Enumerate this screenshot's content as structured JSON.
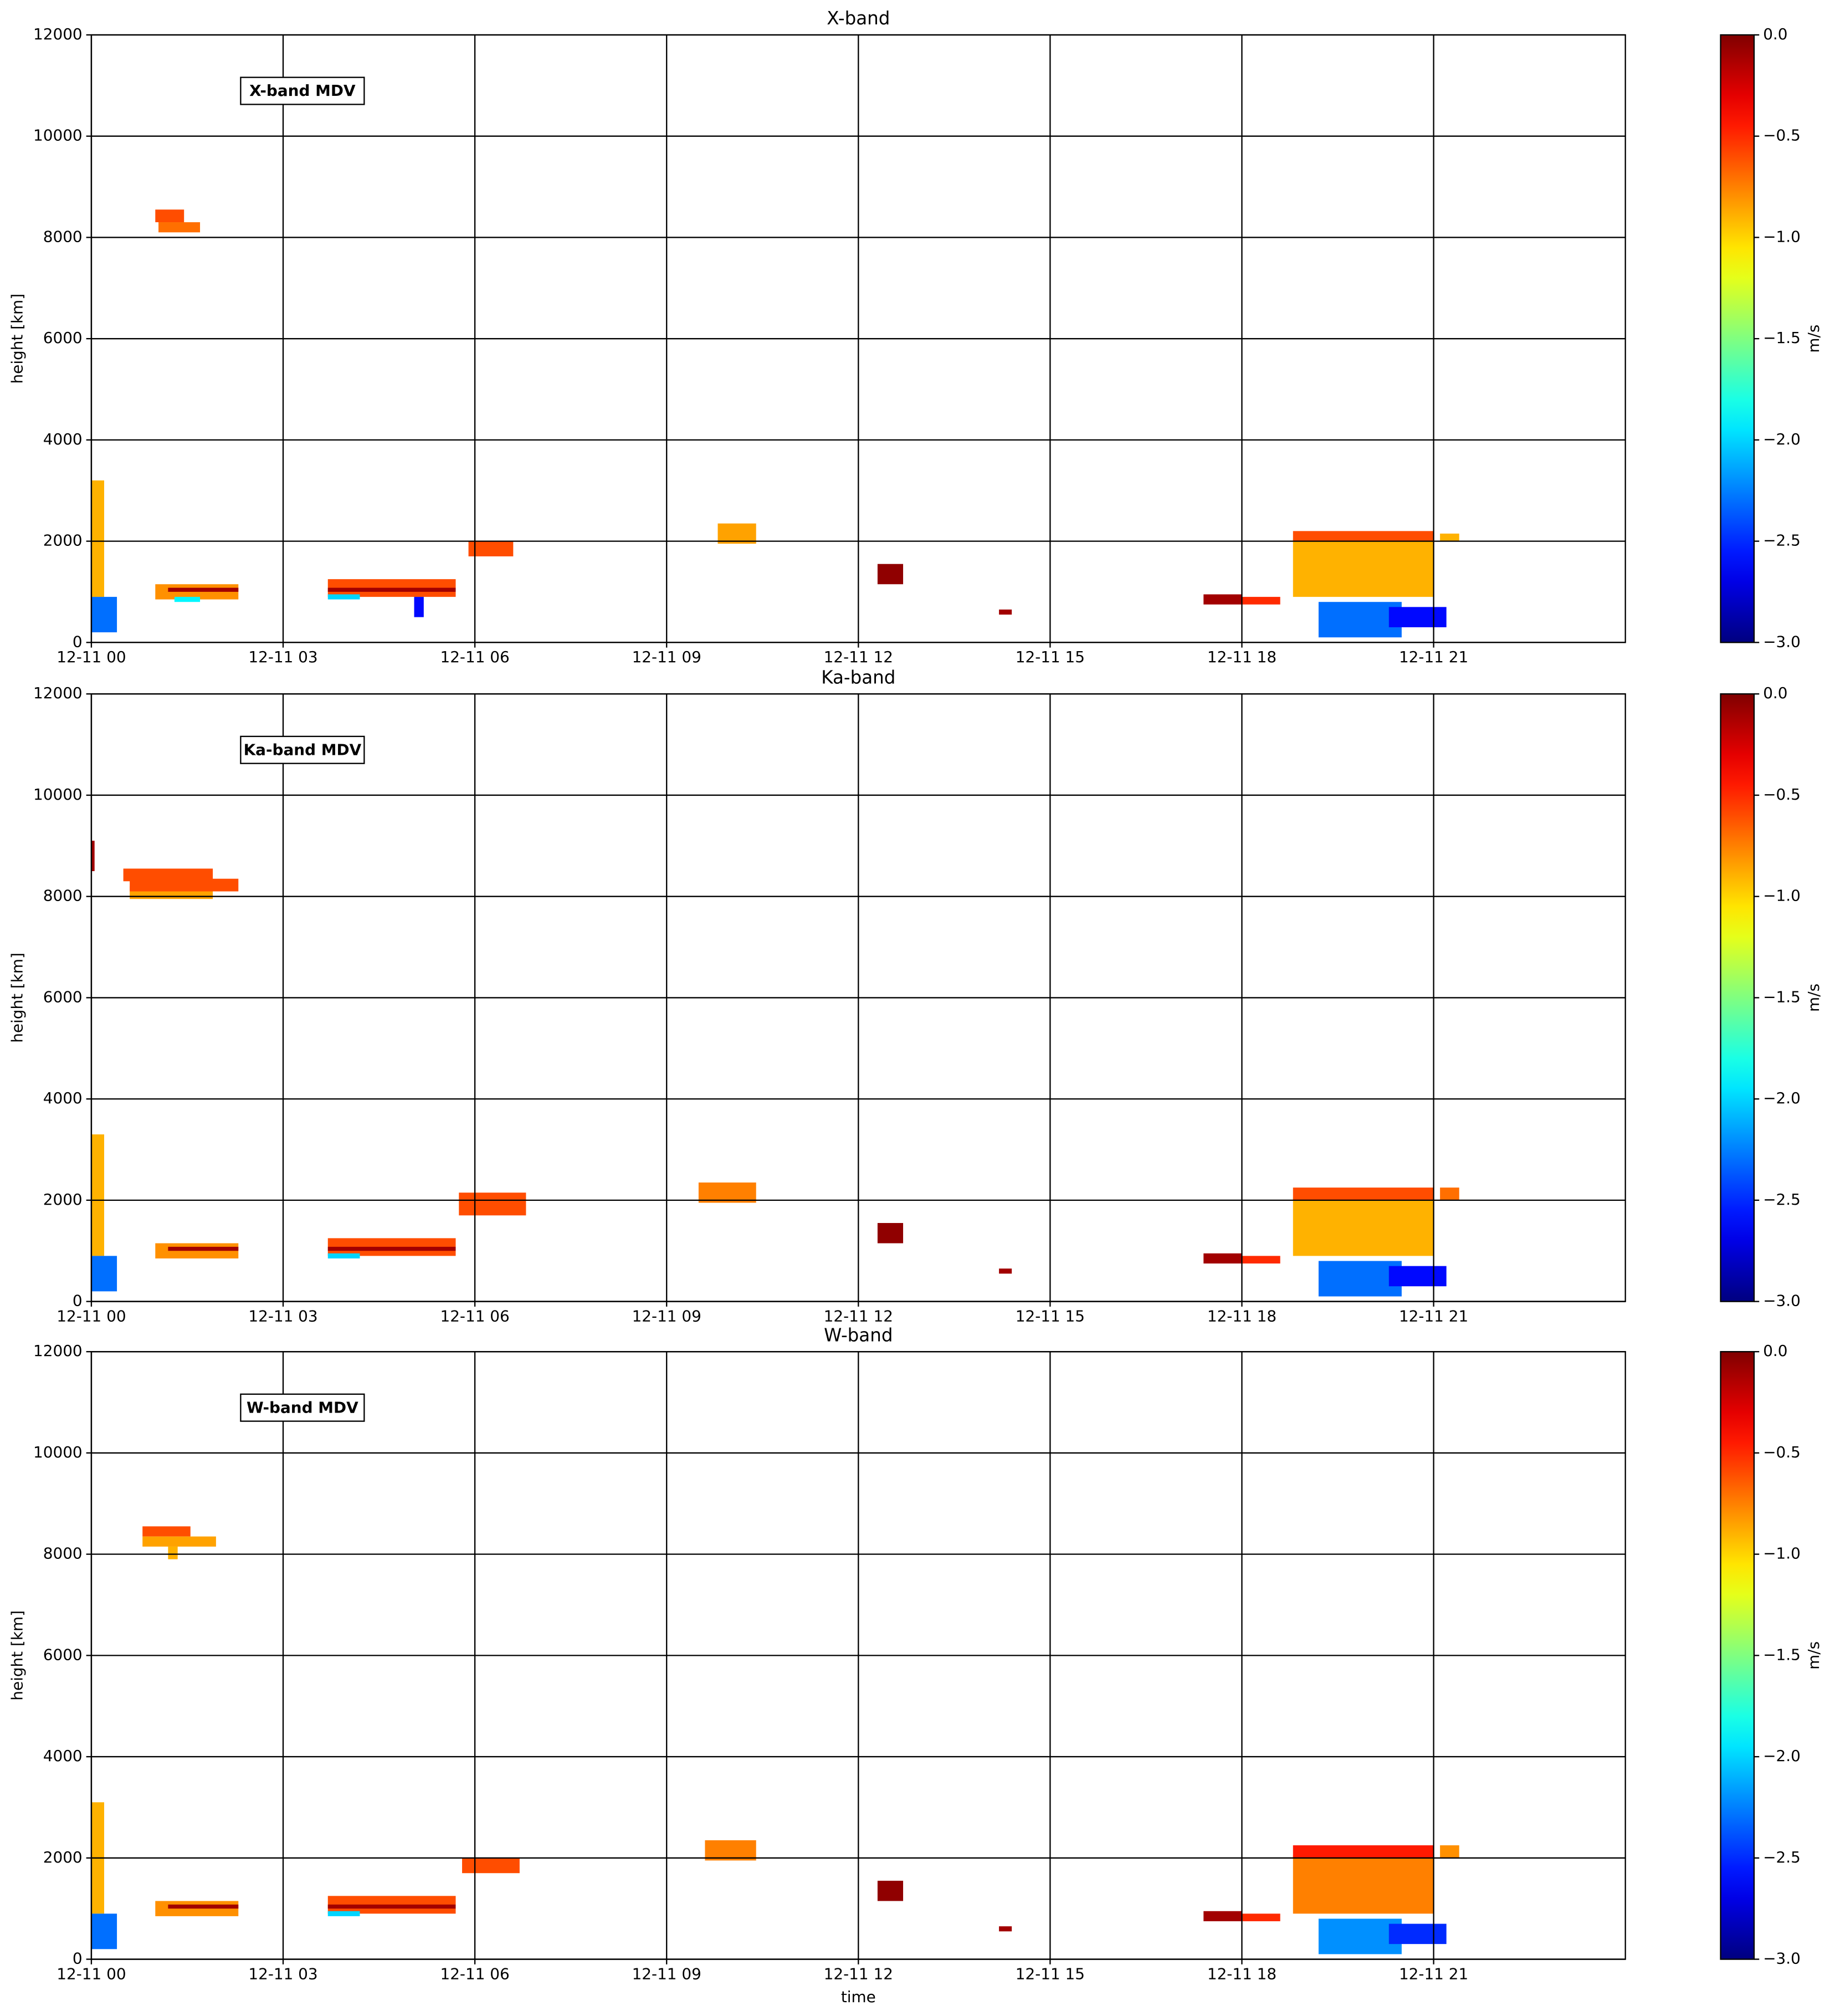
{
  "chart_data": [
    {
      "type": "heatmap",
      "title": "X-band",
      "annotation": "X-band MDV",
      "ylabel": "height [km]",
      "xlim": [
        0,
        24
      ],
      "xticks": [
        {
          "value": 0,
          "label": "12-11 00"
        },
        {
          "value": 3,
          "label": "12-11 03"
        },
        {
          "value": 6,
          "label": "12-11 06"
        },
        {
          "value": 9,
          "label": "12-11 09"
        },
        {
          "value": 12,
          "label": "12-11 12"
        },
        {
          "value": 15,
          "label": "12-11 15"
        },
        {
          "value": 18,
          "label": "12-11 18"
        },
        {
          "value": 21,
          "label": "12-11 21"
        }
      ],
      "ylim": [
        0,
        12000
      ],
      "yticks": [
        0,
        2000,
        4000,
        6000,
        8000,
        10000,
        12000
      ],
      "grid": true,
      "colorbar": {
        "label": "m/s",
        "colormap": "jet",
        "lim": [
          -3,
          0
        ],
        "ticks": [
          {
            "value": 0,
            "label": "0.0"
          },
          {
            "value": -0.5,
            "label": "−0.5"
          },
          {
            "value": -1,
            "label": "−1.0"
          },
          {
            "value": -1.5,
            "label": "−1.5"
          },
          {
            "value": -2,
            "label": "−2.0"
          },
          {
            "value": -2.5,
            "label": "−2.5"
          },
          {
            "value": -3,
            "label": "−3.0"
          }
        ]
      },
      "cells": [
        {
          "x": [
            0,
            0.2
          ],
          "y": [
            900,
            3200
          ],
          "value": -0.9
        },
        {
          "x": [
            0,
            0.4
          ],
          "y": [
            200,
            900
          ],
          "value": -2.3
        },
        {
          "x": [
            1.0,
            1.45
          ],
          "y": [
            8300,
            8550
          ],
          "value": -0.6
        },
        {
          "x": [
            1.05,
            1.7
          ],
          "y": [
            8100,
            8300
          ],
          "value": -0.7
        },
        {
          "x": [
            1.0,
            2.3
          ],
          "y": [
            850,
            1150
          ],
          "value": -0.8
        },
        {
          "x": [
            1.2,
            2.3
          ],
          "y": [
            1000,
            1080
          ],
          "value": -0.1
        },
        {
          "x": [
            1.3,
            1.7
          ],
          "y": [
            800,
            900
          ],
          "value": -1.9
        },
        {
          "x": [
            3.7,
            5.7
          ],
          "y": [
            900,
            1250
          ],
          "value": -0.6
        },
        {
          "x": [
            3.7,
            5.7
          ],
          "y": [
            1000,
            1080
          ],
          "value": -0.1
        },
        {
          "x": [
            3.7,
            4.2
          ],
          "y": [
            850,
            950
          ],
          "value": -2.0
        },
        {
          "x": [
            5.05,
            5.2
          ],
          "y": [
            500,
            900
          ],
          "value": -2.6
        },
        {
          "x": [
            5.9,
            6.6
          ],
          "y": [
            1700,
            2000
          ],
          "value": -0.6
        },
        {
          "x": [
            9.8,
            10.4
          ],
          "y": [
            1950,
            2350
          ],
          "value": -0.85
        },
        {
          "x": [
            12.3,
            12.7
          ],
          "y": [
            1150,
            1550
          ],
          "value": -0.05
        },
        {
          "x": [
            14.2,
            14.4
          ],
          "y": [
            550,
            650
          ],
          "value": -0.1
        },
        {
          "x": [
            17.4,
            18.0
          ],
          "y": [
            750,
            950
          ],
          "value": -0.1
        },
        {
          "x": [
            18.0,
            18.6
          ],
          "y": [
            750,
            900
          ],
          "value": -0.5
        },
        {
          "x": [
            18.8,
            21.0
          ],
          "y": [
            900,
            2050
          ],
          "value": -0.9
        },
        {
          "x": [
            18.8,
            21.0
          ],
          "y": [
            2000,
            2200
          ],
          "value": -0.6
        },
        {
          "x": [
            19.2,
            20.5
          ],
          "y": [
            100,
            800
          ],
          "value": -2.3
        },
        {
          "x": [
            20.3,
            21.2
          ],
          "y": [
            300,
            700
          ],
          "value": -2.6
        },
        {
          "x": [
            21.1,
            21.4
          ],
          "y": [
            2000,
            2150
          ],
          "value": -0.9
        }
      ]
    },
    {
      "type": "heatmap",
      "title": "Ka-band",
      "annotation": "Ka-band MDV",
      "ylabel": "height [km]",
      "xlim": [
        0,
        24
      ],
      "xticks": [
        {
          "value": 0,
          "label": "12-11 00"
        },
        {
          "value": 3,
          "label": "12-11 03"
        },
        {
          "value": 6,
          "label": "12-11 06"
        },
        {
          "value": 9,
          "label": "12-11 09"
        },
        {
          "value": 12,
          "label": "12-11 12"
        },
        {
          "value": 15,
          "label": "12-11 15"
        },
        {
          "value": 18,
          "label": "12-11 18"
        },
        {
          "value": 21,
          "label": "12-11 21"
        }
      ],
      "ylim": [
        0,
        12000
      ],
      "yticks": [
        0,
        2000,
        4000,
        6000,
        8000,
        10000,
        12000
      ],
      "grid": true,
      "colorbar": {
        "label": "m/s",
        "colormap": "jet",
        "lim": [
          -3,
          0
        ],
        "ticks": [
          {
            "value": 0,
            "label": "0.0"
          },
          {
            "value": -0.5,
            "label": "−0.5"
          },
          {
            "value": -1,
            "label": "−1.0"
          },
          {
            "value": -1.5,
            "label": "−1.5"
          },
          {
            "value": -2,
            "label": "−2.0"
          },
          {
            "value": -2.5,
            "label": "−2.5"
          },
          {
            "value": -3,
            "label": "−3.0"
          }
        ]
      },
      "cells": [
        {
          "x": [
            0,
            0.05
          ],
          "y": [
            8500,
            9100
          ],
          "value": -0.1
        },
        {
          "x": [
            0,
            0.2
          ],
          "y": [
            900,
            3300
          ],
          "value": -0.9
        },
        {
          "x": [
            0,
            0.4
          ],
          "y": [
            200,
            900
          ],
          "value": -2.3
        },
        {
          "x": [
            0.5,
            1.9
          ],
          "y": [
            8300,
            8550
          ],
          "value": -0.6
        },
        {
          "x": [
            0.6,
            1.9
          ],
          "y": [
            7950,
            8200
          ],
          "value": -0.85
        },
        {
          "x": [
            0.6,
            2.3
          ],
          "y": [
            8100,
            8350
          ],
          "value": -0.6
        },
        {
          "x": [
            1.0,
            2.3
          ],
          "y": [
            850,
            1150
          ],
          "value": -0.8
        },
        {
          "x": [
            1.2,
            2.3
          ],
          "y": [
            1000,
            1080
          ],
          "value": -0.1
        },
        {
          "x": [
            3.7,
            5.7
          ],
          "y": [
            900,
            1250
          ],
          "value": -0.6
        },
        {
          "x": [
            3.7,
            5.7
          ],
          "y": [
            1000,
            1080
          ],
          "value": -0.1
        },
        {
          "x": [
            3.7,
            4.2
          ],
          "y": [
            850,
            950
          ],
          "value": -2.0
        },
        {
          "x": [
            5.75,
            6.8
          ],
          "y": [
            1700,
            2150
          ],
          "value": -0.6
        },
        {
          "x": [
            9.5,
            10.4
          ],
          "y": [
            1950,
            2350
          ],
          "value": -0.75
        },
        {
          "x": [
            12.3,
            12.7
          ],
          "y": [
            1150,
            1550
          ],
          "value": -0.05
        },
        {
          "x": [
            14.2,
            14.4
          ],
          "y": [
            550,
            650
          ],
          "value": -0.1
        },
        {
          "x": [
            17.4,
            18.0
          ],
          "y": [
            750,
            950
          ],
          "value": -0.1
        },
        {
          "x": [
            18.0,
            18.6
          ],
          "y": [
            750,
            900
          ],
          "value": -0.5
        },
        {
          "x": [
            18.8,
            21.0
          ],
          "y": [
            900,
            2050
          ],
          "value": -0.9
        },
        {
          "x": [
            18.8,
            21.0
          ],
          "y": [
            2000,
            2250
          ],
          "value": -0.6
        },
        {
          "x": [
            19.2,
            20.5
          ],
          "y": [
            100,
            800
          ],
          "value": -2.3
        },
        {
          "x": [
            20.3,
            21.2
          ],
          "y": [
            300,
            700
          ],
          "value": -2.6
        },
        {
          "x": [
            21.1,
            21.4
          ],
          "y": [
            2000,
            2250
          ],
          "value": -0.7
        }
      ]
    },
    {
      "type": "heatmap",
      "title": "W-band",
      "annotation": "W-band MDV",
      "ylabel": "height [km]",
      "xlabel": "time",
      "xlim": [
        0,
        24
      ],
      "xticks": [
        {
          "value": 0,
          "label": "12-11 00"
        },
        {
          "value": 3,
          "label": "12-11 03"
        },
        {
          "value": 6,
          "label": "12-11 06"
        },
        {
          "value": 9,
          "label": "12-11 09"
        },
        {
          "value": 12,
          "label": "12-11 12"
        },
        {
          "value": 15,
          "label": "12-11 15"
        },
        {
          "value": 18,
          "label": "12-11 18"
        },
        {
          "value": 21,
          "label": "12-11 21"
        }
      ],
      "ylim": [
        0,
        12000
      ],
      "yticks": [
        0,
        2000,
        4000,
        6000,
        8000,
        10000,
        12000
      ],
      "grid": true,
      "colorbar": {
        "label": "m/s",
        "colormap": "jet",
        "lim": [
          -3,
          0
        ],
        "ticks": [
          {
            "value": 0,
            "label": "0.0"
          },
          {
            "value": -0.5,
            "label": "−0.5"
          },
          {
            "value": -1,
            "label": "−1.0"
          },
          {
            "value": -1.5,
            "label": "−1.5"
          },
          {
            "value": -2,
            "label": "−2.0"
          },
          {
            "value": -2.5,
            "label": "−2.5"
          },
          {
            "value": -3,
            "label": "−3.0"
          }
        ]
      },
      "cells": [
        {
          "x": [
            0,
            0.2
          ],
          "y": [
            900,
            3100
          ],
          "value": -0.9
        },
        {
          "x": [
            0,
            0.4
          ],
          "y": [
            200,
            900
          ],
          "value": -2.3
        },
        {
          "x": [
            0.8,
            1.55
          ],
          "y": [
            8350,
            8550
          ],
          "value": -0.6
        },
        {
          "x": [
            0.8,
            1.95
          ],
          "y": [
            8150,
            8350
          ],
          "value": -0.85
        },
        {
          "x": [
            1.2,
            1.35
          ],
          "y": [
            7900,
            8150
          ],
          "value": -0.9
        },
        {
          "x": [
            1.0,
            2.3
          ],
          "y": [
            850,
            1150
          ],
          "value": -0.8
        },
        {
          "x": [
            1.2,
            2.3
          ],
          "y": [
            1000,
            1080
          ],
          "value": -0.1
        },
        {
          "x": [
            3.7,
            5.7
          ],
          "y": [
            900,
            1250
          ],
          "value": -0.6
        },
        {
          "x": [
            3.7,
            5.7
          ],
          "y": [
            1000,
            1080
          ],
          "value": -0.1
        },
        {
          "x": [
            3.7,
            4.2
          ],
          "y": [
            850,
            950
          ],
          "value": -2.0
        },
        {
          "x": [
            5.8,
            6.7
          ],
          "y": [
            1700,
            2000
          ],
          "value": -0.6
        },
        {
          "x": [
            9.6,
            10.4
          ],
          "y": [
            1950,
            2350
          ],
          "value": -0.75
        },
        {
          "x": [
            12.3,
            12.7
          ],
          "y": [
            1150,
            1550
          ],
          "value": -0.05
        },
        {
          "x": [
            14.2,
            14.4
          ],
          "y": [
            550,
            650
          ],
          "value": -0.1
        },
        {
          "x": [
            17.4,
            18.0
          ],
          "y": [
            750,
            950
          ],
          "value": -0.1
        },
        {
          "x": [
            18.0,
            18.6
          ],
          "y": [
            750,
            900
          ],
          "value": -0.5
        },
        {
          "x": [
            18.8,
            21.0
          ],
          "y": [
            900,
            2050
          ],
          "value": -0.75
        },
        {
          "x": [
            18.8,
            21.0
          ],
          "y": [
            2000,
            2250
          ],
          "value": -0.45
        },
        {
          "x": [
            19.2,
            20.5
          ],
          "y": [
            100,
            800
          ],
          "value": -2.2
        },
        {
          "x": [
            20.3,
            21.2
          ],
          "y": [
            300,
            700
          ],
          "value": -2.5
        },
        {
          "x": [
            21.1,
            21.4
          ],
          "y": [
            2000,
            2250
          ],
          "value": -0.8
        }
      ]
    }
  ]
}
